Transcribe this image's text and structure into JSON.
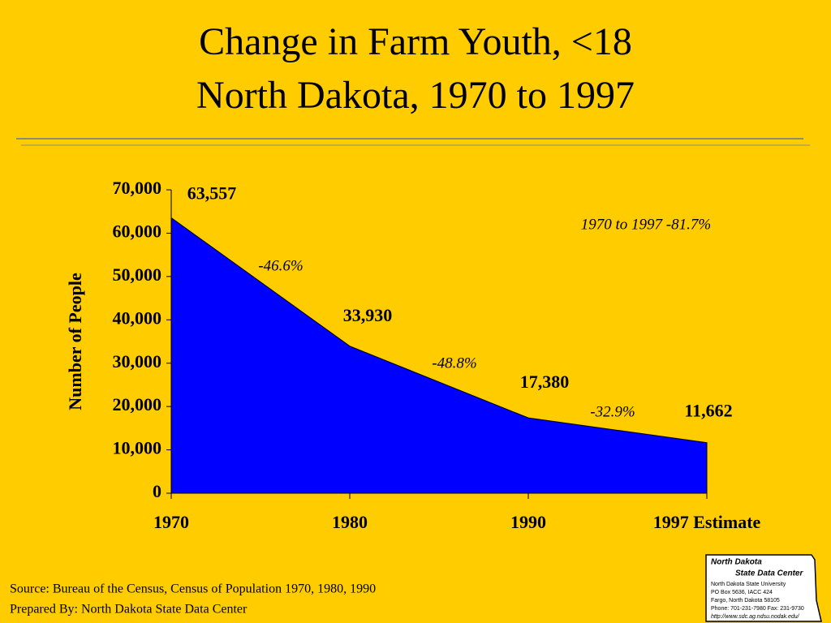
{
  "chart_data": {
    "type": "area",
    "title": [
      "Change in Farm Youth, <18",
      "North Dakota, 1970 to 1997"
    ],
    "categories": [
      "1970",
      "1980",
      "1990",
      "1997 Estimate"
    ],
    "values": [
      63557,
      33930,
      17380,
      11662
    ],
    "value_labels": [
      "63,557",
      "33,930",
      "17,380",
      "11,662"
    ],
    "color": "#0000ff",
    "ylabel": "Number of People",
    "ylim": [
      0,
      70000
    ],
    "yticks": [
      0,
      {
        "value": 10000,
        "label": "10,000"
      },
      {
        "value": 20000,
        "label": "20,000"
      },
      {
        "value": 30000,
        "label": "30,000"
      },
      {
        "value": 40000,
        "label": "40,000"
      },
      {
        "value": 50000,
        "label": "50,000"
      },
      {
        "value": 60000,
        "label": "60,000"
      },
      {
        "value": 70000,
        "label": "70,000"
      }
    ],
    "annotations": [
      "-46.6%",
      "-48.8%",
      "-32.9%",
      "1970 to 1997  -81.7%"
    ],
    "source": [
      "Source:  Bureau of the Census, Census of Population 1970, 1980, 1990",
      "Prepared By: North Dakota State Data Center"
    ],
    "logo": [
      "North Dakota",
      "State Data Center",
      "North Dakota State University",
      "PO Box 5636, IACC 424",
      "Fargo, North Dakota 58105",
      "Phone: 701-231-7980    Fax: 231-9730",
      "http://www.sdc.ag.ndsu.nodak.edu/"
    ]
  }
}
